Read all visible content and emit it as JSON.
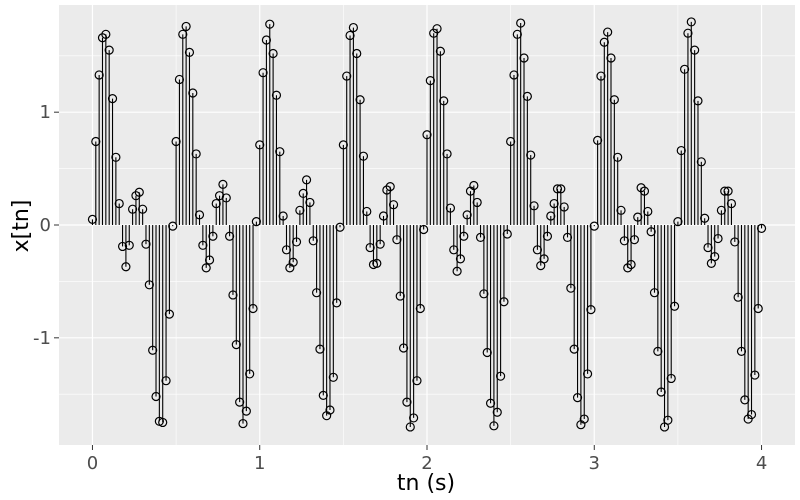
{
  "chart_data": {
    "type": "stem",
    "xlabel": "tn (s)",
    "ylabel": "x[tn]",
    "xlim": [
      -0.2,
      4.2
    ],
    "ylim": [
      -1.95,
      1.95
    ],
    "x_ticks": [
      0,
      1,
      2,
      3,
      4
    ],
    "x_tick_labels": [
      "0",
      "1",
      "2",
      "3",
      "4"
    ],
    "y_ticks": [
      -1,
      0,
      1
    ],
    "y_tick_labels": [
      "-1",
      "0",
      "1"
    ],
    "grid": true,
    "colors": {
      "panel": "#ebebeb",
      "grid": "#ffffff",
      "stem": "#000000",
      "tick_label": "#4d4d4d"
    },
    "series": [
      {
        "x": [
          0.0,
          0.02,
          0.04,
          0.06,
          0.08,
          0.1,
          0.12,
          0.14,
          0.16,
          0.18,
          0.2,
          0.22,
          0.24,
          0.26,
          0.28,
          0.3,
          0.32,
          0.34,
          0.36,
          0.38,
          0.4,
          0.42,
          0.44,
          0.46,
          0.48,
          0.5,
          0.52,
          0.54,
          0.56,
          0.58,
          0.6,
          0.62,
          0.64,
          0.66,
          0.68,
          0.7,
          0.72,
          0.74,
          0.76,
          0.78,
          0.8,
          0.82,
          0.84,
          0.86,
          0.88,
          0.9,
          0.92,
          0.94,
          0.96,
          0.98,
          1.0,
          1.02,
          1.04,
          1.06,
          1.08,
          1.1,
          1.12,
          1.14,
          1.16,
          1.18,
          1.2,
          1.22,
          1.24,
          1.26,
          1.28,
          1.3,
          1.32,
          1.34,
          1.36,
          1.38,
          1.4,
          1.42,
          1.44,
          1.46,
          1.48,
          1.5,
          1.52,
          1.54,
          1.56,
          1.58,
          1.6,
          1.62,
          1.64,
          1.66,
          1.68,
          1.7,
          1.72,
          1.74,
          1.76,
          1.78,
          1.8,
          1.82,
          1.84,
          1.86,
          1.88,
          1.9,
          1.92,
          1.94,
          1.96,
          1.98,
          2.0,
          2.02,
          2.04,
          2.06,
          2.08,
          2.1,
          2.12,
          2.14,
          2.16,
          2.18,
          2.2,
          2.22,
          2.24,
          2.26,
          2.28,
          2.3,
          2.32,
          2.34,
          2.36,
          2.38,
          2.4,
          2.42,
          2.44,
          2.46,
          2.48,
          2.5,
          2.52,
          2.54,
          2.56,
          2.58,
          2.6,
          2.62,
          2.64,
          2.66,
          2.68,
          2.7,
          2.72,
          2.74,
          2.76,
          2.78,
          2.8,
          2.82,
          2.84,
          2.86,
          2.88,
          2.9,
          2.92,
          2.94,
          2.96,
          2.98,
          3.0,
          3.02,
          3.04,
          3.06,
          3.08,
          3.1,
          3.12,
          3.14,
          3.16,
          3.18,
          3.2,
          3.22,
          3.24,
          3.26,
          3.28,
          3.3,
          3.32,
          3.34,
          3.36,
          3.38,
          3.4,
          3.42,
          3.44,
          3.46,
          3.48,
          3.5,
          3.52,
          3.54,
          3.56,
          3.58,
          3.6,
          3.62,
          3.64,
          3.66,
          3.68,
          3.7,
          3.72,
          3.74,
          3.76,
          3.78,
          3.8,
          3.82,
          3.84,
          3.86,
          3.88,
          3.9,
          3.92,
          3.94,
          3.96,
          3.98,
          4.0
        ],
        "y": [
          0.05,
          0.74,
          1.33,
          1.66,
          1.69,
          1.55,
          1.12,
          0.6,
          0.19,
          -0.19,
          -0.37,
          -0.18,
          0.14,
          0.26,
          0.29,
          0.14,
          -0.17,
          -0.53,
          -1.11,
          -1.52,
          -1.74,
          -1.75,
          -1.38,
          -0.79,
          -0.01,
          0.74,
          1.29,
          1.69,
          1.76,
          1.53,
          1.17,
          0.63,
          0.09,
          -0.18,
          -0.38,
          -0.31,
          -0.1,
          0.19,
          0.26,
          0.36,
          0.24,
          -0.1,
          -0.62,
          -1.06,
          -1.57,
          -1.76,
          -1.65,
          -1.32,
          -0.74,
          0.03,
          0.71,
          1.35,
          1.64,
          1.78,
          1.52,
          1.15,
          0.65,
          0.08,
          -0.22,
          -0.38,
          -0.33,
          -0.15,
          0.13,
          0.28,
          0.4,
          0.2,
          -0.14,
          -0.6,
          -1.1,
          -1.51,
          -1.69,
          -1.64,
          -1.35,
          -0.69,
          -0.02,
          0.71,
          1.32,
          1.68,
          1.75,
          1.52,
          1.11,
          0.61,
          0.12,
          -0.2,
          -0.35,
          -0.34,
          -0.17,
          0.08,
          0.31,
          0.34,
          0.18,
          -0.13,
          -0.63,
          -1.09,
          -1.57,
          -1.79,
          -1.71,
          -1.38,
          -0.74,
          -0.04,
          0.8,
          1.28,
          1.7,
          1.74,
          1.54,
          1.1,
          0.63,
          0.15,
          -0.22,
          -0.41,
          -0.3,
          -0.1,
          0.09,
          0.3,
          0.35,
          0.2,
          -0.11,
          -0.61,
          -1.13,
          -1.58,
          -1.78,
          -1.66,
          -1.34,
          -0.68,
          -0.08,
          0.74,
          1.33,
          1.69,
          1.79,
          1.48,
          1.14,
          0.62,
          0.17,
          -0.22,
          -0.36,
          -0.3,
          -0.1,
          0.08,
          0.19,
          0.32,
          0.32,
          0.16,
          -0.11,
          -0.56,
          -1.1,
          -1.53,
          -1.77,
          -1.72,
          -1.32,
          -0.75,
          -0.01,
          0.75,
          1.32,
          1.62,
          1.71,
          1.48,
          1.11,
          0.6,
          0.13,
          -0.14,
          -0.38,
          -0.35,
          -0.13,
          0.07,
          0.33,
          0.3,
          0.12,
          -0.06,
          -0.6,
          -1.12,
          -1.48,
          -1.79,
          -1.73,
          -1.36,
          -0.72,
          0.03,
          0.66,
          1.38,
          1.7,
          1.8,
          1.55,
          1.1,
          0.56,
          0.06,
          -0.2,
          -0.34,
          -0.28,
          -0.12,
          0.13,
          0.3,
          0.3,
          0.19,
          -0.15,
          -0.64,
          -1.12,
          -1.55,
          -1.72,
          -1.68,
          -1.33,
          -0.74,
          -0.03
        ]
      }
    ]
  }
}
